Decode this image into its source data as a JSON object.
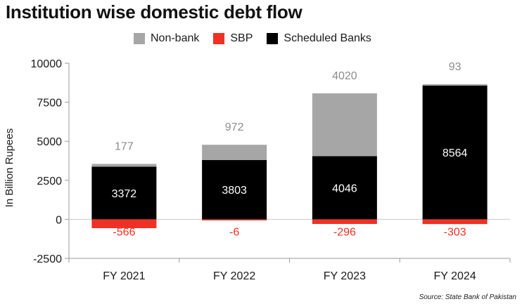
{
  "chart_data": {
    "type": "bar",
    "stacked": true,
    "title": "Institution wise domestic debt flow",
    "ylabel": "In Billion Rupees",
    "xlabel": "",
    "categories": [
      "FY 2021",
      "FY 2022",
      "FY 2023",
      "FY 2024"
    ],
    "ylim": [
      -2500,
      10000
    ],
    "yticks": [
      -2500,
      0,
      2500,
      5000,
      7500,
      10000
    ],
    "ytick_labels": [
      "-2500",
      "0",
      "2500",
      "5000",
      "7500",
      "10000"
    ],
    "series": [
      {
        "name": "Scheduled Banks",
        "color": "#000000",
        "label_color": "#ffffff",
        "values": [
          3372,
          3803,
          4046,
          8564
        ]
      },
      {
        "name": "Non-bank",
        "color": "#a6a6a6",
        "label_color": "#8c8c8c",
        "values": [
          177,
          972,
          4020,
          93
        ]
      },
      {
        "name": "SBP",
        "color": "#ee3124",
        "label_color": "#ee3124",
        "values": [
          -566,
          -6,
          -296,
          -303
        ]
      }
    ],
    "legend": {
      "position": "top",
      "order": [
        "Non-bank",
        "SBP",
        "Scheduled Banks"
      ]
    },
    "grid": false,
    "source": "Source: State Bank of Pakistan"
  }
}
